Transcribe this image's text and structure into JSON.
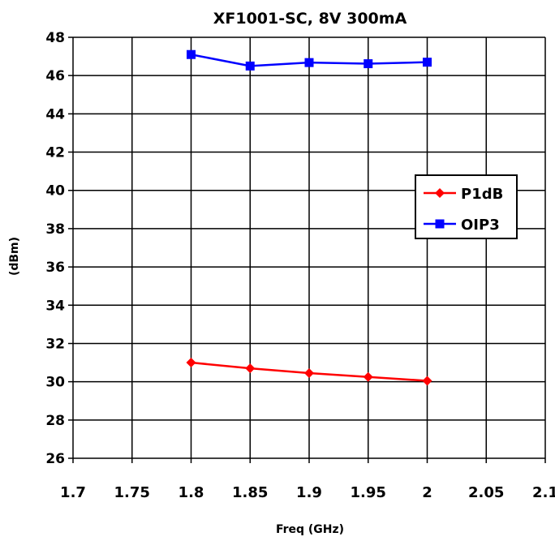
{
  "chart_data": {
    "type": "line",
    "title": "XF1001-SC, 8V 300mA",
    "xlabel": "Freq (GHz)",
    "ylabel": "(dBm)",
    "xlim": [
      1.7,
      2.1
    ],
    "ylim": [
      26,
      48
    ],
    "xticks": [
      "1.7",
      "1.75",
      "1.8",
      "1.85",
      "1.9",
      "1.95",
      "2",
      "2.05",
      "2.1"
    ],
    "yticks": [
      "26",
      "28",
      "30",
      "32",
      "34",
      "36",
      "38",
      "40",
      "42",
      "44",
      "46",
      "48"
    ],
    "grid": true,
    "legend_position": "right",
    "series": [
      {
        "name": "P1dB",
        "color": "#ff0000",
        "marker": "diamond",
        "x": [
          1.8,
          1.85,
          1.9,
          1.95,
          2.0
        ],
        "y": [
          31.0,
          30.7,
          30.45,
          30.25,
          30.05
        ]
      },
      {
        "name": "OIP3",
        "color": "#0000ff",
        "marker": "square",
        "x": [
          1.8,
          1.85,
          1.9,
          1.95,
          2.0
        ],
        "y": [
          47.1,
          46.5,
          46.68,
          46.62,
          46.7
        ]
      }
    ]
  }
}
